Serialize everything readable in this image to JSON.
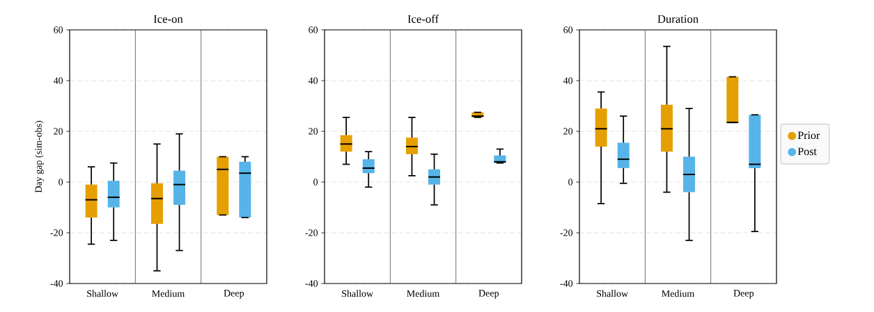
{
  "chart_data": [
    {
      "type": "box",
      "title": "Ice-on",
      "ylabel": "Day gap (sim-obs)",
      "categories": [
        "Shallow",
        "Medium",
        "Deep"
      ],
      "ylim": [
        -40,
        60
      ],
      "yticks": [
        -40,
        -20,
        0,
        20,
        40,
        60
      ],
      "grid": "y",
      "series": [
        {
          "color": "#e69f00",
          "boxes": [
            {
              "low": -24.5,
              "q1": -14,
              "median": -7,
              "q3": -1,
              "high": 6
            },
            {
              "low": -35,
              "q1": -16.5,
              "median": -6.5,
              "q3": -0.5,
              "high": 15
            },
            {
              "low": -13,
              "q1": -13,
              "median": 5,
              "q3": 10,
              "high": 10
            }
          ]
        },
        {
          "color": "#56b4e9",
          "boxes": [
            {
              "low": -23,
              "q1": -10,
              "median": -6,
              "q3": 0.5,
              "high": 7.5
            },
            {
              "low": -27,
              "q1": -9,
              "median": -1,
              "q3": 4.5,
              "high": 19
            },
            {
              "low": -14,
              "q1": -14,
              "median": 3.5,
              "q3": 8,
              "high": 10
            }
          ]
        }
      ]
    },
    {
      "type": "box",
      "title": "Ice-off",
      "categories": [
        "Shallow",
        "Medium",
        "Deep"
      ],
      "ylim": [
        -40,
        60
      ],
      "yticks": [
        -40,
        -20,
        0,
        20,
        40,
        60
      ],
      "grid": "y",
      "series": [
        {
          "color": "#e69f00",
          "boxes": [
            {
              "low": 7,
              "q1": 12,
              "median": 15,
              "q3": 18.5,
              "high": 25.5
            },
            {
              "low": 2.5,
              "q1": 11,
              "median": 14,
              "q3": 17.5,
              "high": 25.5
            },
            {
              "low": 25.5,
              "q1": 25.5,
              "median": 26,
              "q3": 27.5,
              "high": 27.5
            }
          ]
        },
        {
          "color": "#56b4e9",
          "boxes": [
            {
              "low": -2,
              "q1": 3.5,
              "median": 5.5,
              "q3": 9,
              "high": 12
            },
            {
              "low": -9,
              "q1": -1,
              "median": 2,
              "q3": 5,
              "high": 11
            },
            {
              "low": 7.5,
              "q1": 7.5,
              "median": 8,
              "q3": 10.5,
              "high": 13
            }
          ]
        }
      ]
    },
    {
      "type": "box",
      "title": "Duration",
      "categories": [
        "Shallow",
        "Medium",
        "Deep"
      ],
      "ylim": [
        -40,
        60
      ],
      "yticks": [
        -40,
        -20,
        0,
        20,
        40,
        60
      ],
      "grid": "y",
      "legend": "right",
      "series": [
        {
          "name": "Prior",
          "color": "#e69f00",
          "boxes": [
            {
              "low": -8.5,
              "q1": 14,
              "median": 21,
              "q3": 29,
              "high": 35.5
            },
            {
              "low": -4,
              "q1": 12,
              "median": 21,
              "q3": 30.5,
              "high": 53.5
            },
            {
              "low": 23.5,
              "q1": 23.5,
              "median": 23.5,
              "q3": 41.5,
              "high": 41.5
            }
          ]
        },
        {
          "name": "Post",
          "color": "#56b4e9",
          "boxes": [
            {
              "low": -0.5,
              "q1": 5.5,
              "median": 9,
              "q3": 15.5,
              "high": 26
            },
            {
              "low": -23,
              "q1": -4,
              "median": 3,
              "q3": 10,
              "high": 29
            },
            {
              "low": -19.5,
              "q1": 5.5,
              "median": 7,
              "q3": 26.5,
              "high": 26.5
            }
          ]
        }
      ]
    }
  ]
}
